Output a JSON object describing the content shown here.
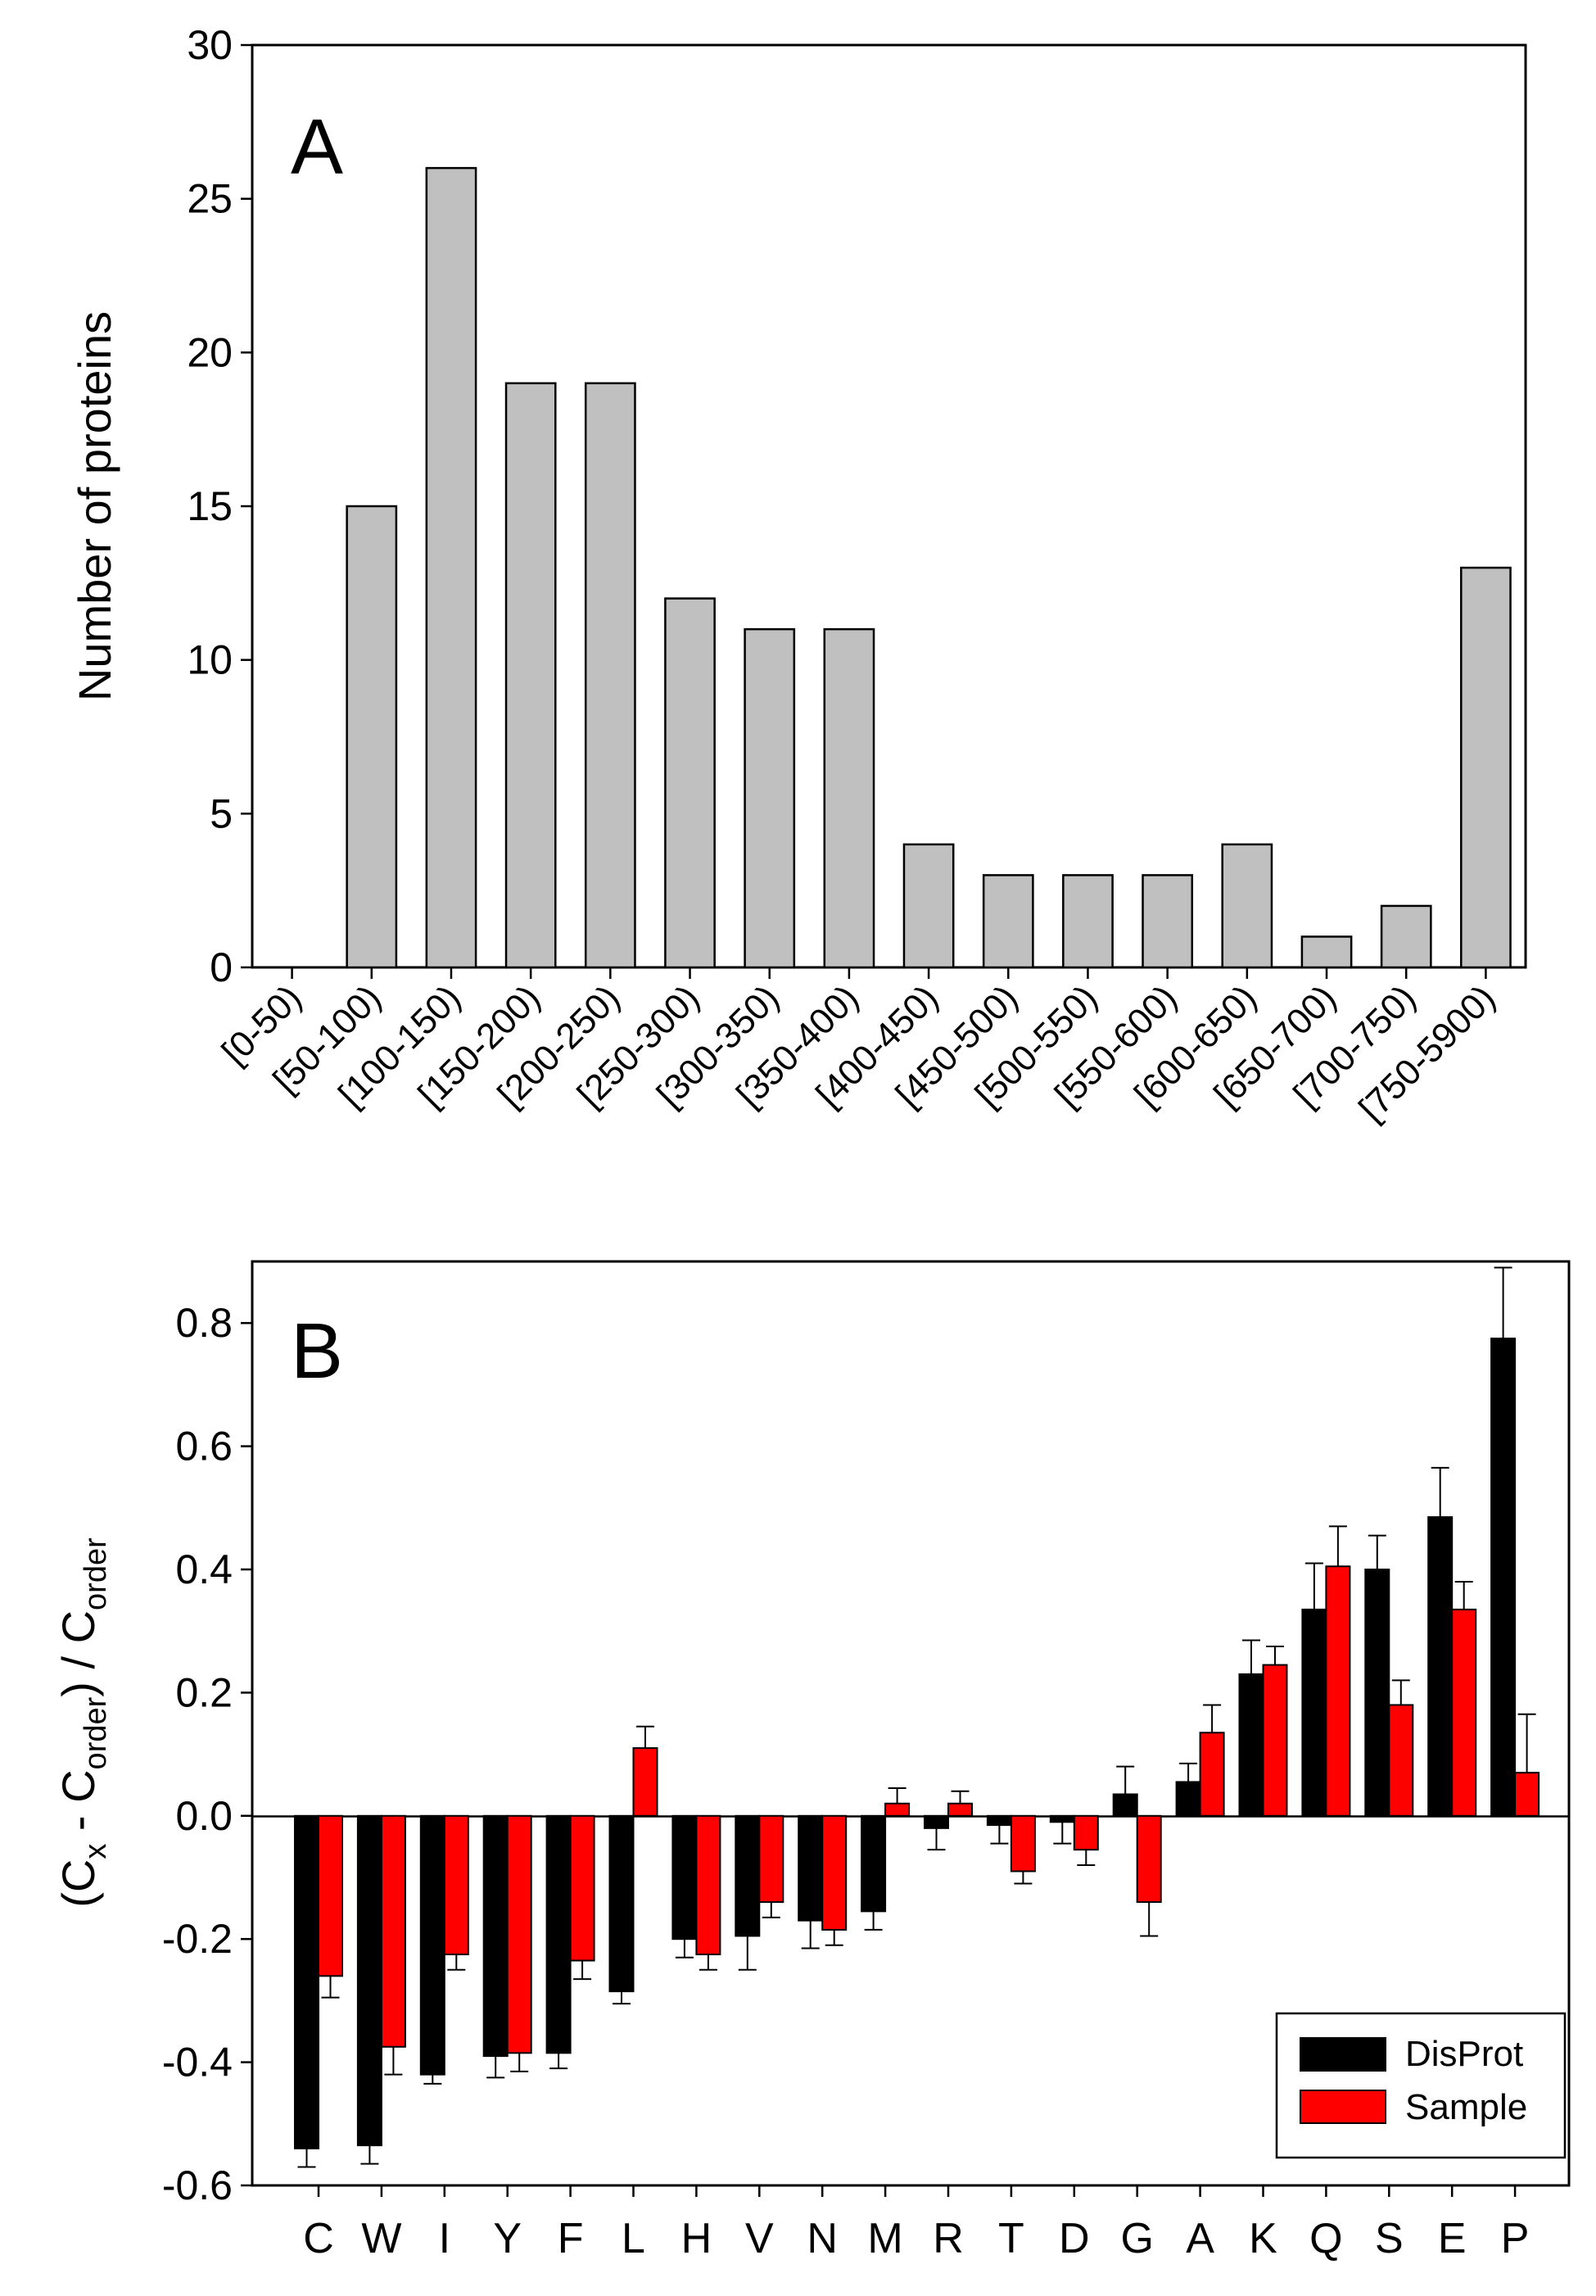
{
  "colors": {
    "panel_a_bar": "#c0c0c0",
    "disprot": "#000000",
    "sample": "#ff0000"
  },
  "chart_data": [
    {
      "type": "bar",
      "panel_label": "A",
      "title": "",
      "xlabel": "",
      "ylabel": "Number of proteins",
      "ylim": [
        0,
        30
      ],
      "yticks": [
        "0",
        "5",
        "10",
        "15",
        "20",
        "25",
        "30"
      ],
      "categories": [
        "[0-50)",
        "[50-100)",
        "[100-150)",
        "[150-200)",
        "[200-250)",
        "[250-300)",
        "[300-350)",
        "[350-400)",
        "[400-450)",
        "[450-500)",
        "[500-550)",
        "[550-600)",
        "[600-650)",
        "[650-700)",
        "[700-750)",
        "[750-5900)"
      ],
      "values": [
        0,
        15,
        26,
        19,
        19,
        12,
        11,
        11,
        4,
        3,
        3,
        3,
        4,
        1,
        2,
        13
      ],
      "grid": false,
      "legend": null
    },
    {
      "type": "bar",
      "panel_label": "B",
      "title": "",
      "xlabel": "",
      "ylabel": {
        "open": "(C",
        "sub1": "x",
        "mid": " - C",
        "sub2": "order",
        "close": ") / C",
        "sub3": "order"
      },
      "ylim": [
        -0.6,
        0.9
      ],
      "yticks": [
        "-0.6",
        "-0.4",
        "-0.2",
        "0.0",
        "0.2",
        "0.4",
        "0.6",
        "0.8"
      ],
      "categories": [
        "C",
        "W",
        "I",
        "Y",
        "F",
        "L",
        "H",
        "V",
        "N",
        "M",
        "R",
        "T",
        "D",
        "G",
        "A",
        "K",
        "Q",
        "S",
        "E",
        "P"
      ],
      "series": [
        {
          "name": "DisProt",
          "values": [
            -0.54,
            -0.535,
            -0.42,
            -0.39,
            -0.385,
            -0.285,
            -0.2,
            -0.195,
            -0.17,
            -0.155,
            -0.02,
            -0.015,
            -0.01,
            0.035,
            0.055,
            0.23,
            0.335,
            0.4,
            0.485,
            0.775
          ],
          "errors": [
            0.03,
            0.03,
            0.015,
            0.035,
            0.025,
            0.02,
            0.03,
            0.055,
            0.045,
            0.03,
            0.035,
            0.03,
            0.035,
            0.045,
            0.03,
            0.055,
            0.075,
            0.055,
            0.08,
            0.115
          ]
        },
        {
          "name": "Sample",
          "values": [
            -0.26,
            -0.375,
            -0.225,
            -0.385,
            -0.235,
            0.11,
            -0.225,
            -0.14,
            -0.185,
            0.02,
            0.02,
            -0.09,
            -0.055,
            -0.14,
            0.135,
            0.245,
            0.405,
            0.18,
            0.335,
            0.07
          ],
          "errors": [
            0.035,
            0.045,
            0.025,
            0.03,
            0.03,
            0.035,
            0.025,
            0.025,
            0.025,
            0.025,
            0.02,
            0.02,
            0.025,
            0.055,
            0.045,
            0.03,
            0.065,
            0.04,
            0.045,
            0.095
          ]
        }
      ],
      "grid": false,
      "legend": "bottom-right"
    }
  ]
}
